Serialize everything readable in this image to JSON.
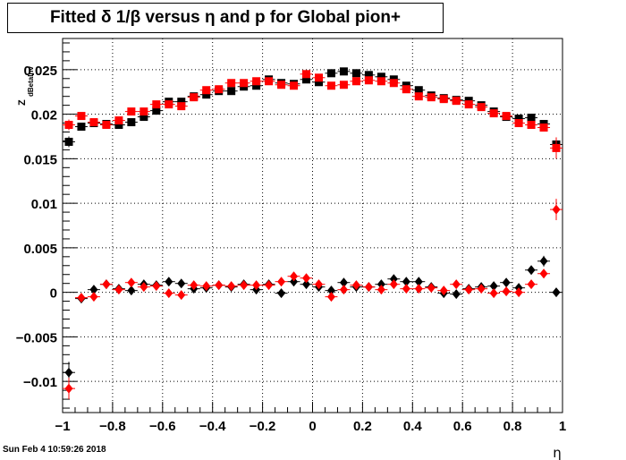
{
  "chart_data": {
    "type": "scatter",
    "title": "Fitted δ 1/β versus η and p for Global pion+",
    "xlabel": "η",
    "ylabel": "Z",
    "ylabel_sub": "dBetaInv",
    "xlim": [
      -1,
      1
    ],
    "ylim": [
      -0.0135,
      0.0285
    ],
    "grid": true,
    "x_ticks": [
      -1,
      -0.8,
      -0.6,
      -0.4,
      -0.2,
      0,
      0.2,
      0.4,
      0.6,
      0.8,
      1
    ],
    "x_tick_labels": [
      "−1",
      "−0.8",
      "−0.6",
      "−0.4",
      "−0.2",
      "0",
      "0.2",
      "0.4",
      "0.6",
      "0.8",
      "1"
    ],
    "y_ticks": [
      -0.01,
      -0.005,
      0,
      0.005,
      0.01,
      0.015,
      0.02,
      0.025
    ],
    "y_tick_labels": [
      "−0.01",
      "−0.005",
      "0",
      "0.005",
      "0.01",
      "0.015",
      "0.02",
      "0.025"
    ],
    "series": [
      {
        "marker": "square",
        "color": "#000000",
        "x": [
          -0.975,
          -0.925,
          -0.875,
          -0.825,
          -0.775,
          -0.725,
          -0.675,
          -0.625,
          -0.575,
          -0.525,
          -0.475,
          -0.425,
          -0.375,
          -0.325,
          -0.275,
          -0.225,
          -0.175,
          -0.125,
          -0.075,
          -0.025,
          0.025,
          0.075,
          0.125,
          0.175,
          0.225,
          0.275,
          0.325,
          0.375,
          0.425,
          0.475,
          0.525,
          0.575,
          0.625,
          0.675,
          0.725,
          0.775,
          0.825,
          0.875,
          0.925,
          0.975
        ],
        "y": [
          0.0169,
          0.0186,
          0.019,
          0.0189,
          0.0188,
          0.0191,
          0.0197,
          0.0204,
          0.0214,
          0.0214,
          0.022,
          0.0222,
          0.0226,
          0.0226,
          0.0231,
          0.0232,
          0.0239,
          0.0235,
          0.0234,
          0.0239,
          0.0236,
          0.0246,
          0.0248,
          0.0246,
          0.0244,
          0.0242,
          0.0239,
          0.0232,
          0.0227,
          0.0221,
          0.0218,
          0.0216,
          0.0215,
          0.021,
          0.0203,
          0.0197,
          0.0195,
          0.0196,
          0.0189,
          0.0166
        ],
        "yerr": [
          0.0006,
          0.0003,
          0.0003,
          0.0003,
          0.0003,
          0.0003,
          0.0003,
          0.0003,
          0.0003,
          0.0003,
          0.0003,
          0.0003,
          0.0003,
          0.0003,
          0.0003,
          0.0003,
          0.0003,
          0.0003,
          0.0003,
          0.0003,
          0.0003,
          0.0003,
          0.0003,
          0.0003,
          0.0003,
          0.0003,
          0.0003,
          0.0003,
          0.0003,
          0.0003,
          0.0003,
          0.0003,
          0.0003,
          0.0003,
          0.0003,
          0.0003,
          0.0003,
          0.0003,
          0.0003,
          0.0006
        ]
      },
      {
        "marker": "square",
        "color": "#ff0000",
        "x": [
          -0.975,
          -0.925,
          -0.875,
          -0.825,
          -0.775,
          -0.725,
          -0.675,
          -0.625,
          -0.575,
          -0.525,
          -0.475,
          -0.425,
          -0.375,
          -0.325,
          -0.275,
          -0.225,
          -0.175,
          -0.125,
          -0.075,
          -0.025,
          0.025,
          0.075,
          0.125,
          0.175,
          0.225,
          0.275,
          0.325,
          0.375,
          0.425,
          0.475,
          0.525,
          0.575,
          0.625,
          0.675,
          0.725,
          0.775,
          0.825,
          0.875,
          0.925,
          0.975
        ],
        "y": [
          0.0188,
          0.0198,
          0.0191,
          0.0188,
          0.0193,
          0.0203,
          0.0203,
          0.0211,
          0.0211,
          0.0209,
          0.0219,
          0.0227,
          0.0228,
          0.0235,
          0.0235,
          0.0237,
          0.0237,
          0.0233,
          0.0232,
          0.0245,
          0.0241,
          0.0232,
          0.0233,
          0.0237,
          0.0238,
          0.0237,
          0.0235,
          0.0228,
          0.022,
          0.0219,
          0.0217,
          0.0215,
          0.0211,
          0.0208,
          0.0201,
          0.0198,
          0.019,
          0.0188,
          0.0185,
          0.0162
        ],
        "yerr": [
          0.0006,
          0.0003,
          0.0003,
          0.0003,
          0.0003,
          0.0003,
          0.0003,
          0.0003,
          0.0003,
          0.0003,
          0.0003,
          0.0003,
          0.0003,
          0.0003,
          0.0003,
          0.0003,
          0.0003,
          0.0003,
          0.0003,
          0.0003,
          0.0003,
          0.0003,
          0.0003,
          0.0003,
          0.0003,
          0.0003,
          0.0003,
          0.0003,
          0.0003,
          0.0003,
          0.0003,
          0.0003,
          0.0003,
          0.0003,
          0.0003,
          0.0003,
          0.0003,
          0.0003,
          0.0003,
          0.0012
        ]
      },
      {
        "marker": "diamond",
        "color": "#000000",
        "x": [
          -0.975,
          -0.925,
          -0.875,
          -0.825,
          -0.775,
          -0.725,
          -0.675,
          -0.625,
          -0.575,
          -0.525,
          -0.475,
          -0.425,
          -0.375,
          -0.325,
          -0.275,
          -0.225,
          -0.175,
          -0.125,
          -0.075,
          -0.025,
          0.025,
          0.075,
          0.125,
          0.175,
          0.225,
          0.275,
          0.325,
          0.375,
          0.425,
          0.475,
          0.525,
          0.575,
          0.625,
          0.675,
          0.725,
          0.775,
          0.825,
          0.875,
          0.925,
          0.975
        ],
        "y": [
          -0.009,
          -0.0007,
          0.0003,
          0.0009,
          0.0004,
          0.0002,
          0.0009,
          0.0008,
          0.0012,
          0.001,
          0.0004,
          0.0005,
          0.0008,
          0.0006,
          0.0009,
          0.0003,
          0.0009,
          -0.0001,
          0.0012,
          0.0009,
          0.0006,
          0.0002,
          0.0011,
          0.0006,
          0.0006,
          0.0009,
          0.0015,
          0.0012,
          0.0012,
          0.0006,
          -0.0001,
          -0.0002,
          0.0004,
          0.0006,
          0.0007,
          0.0011,
          0.0005,
          0.0025,
          0.0035,
          0.0
        ],
        "yerr": [
          0.0012,
          0.0003,
          0.0003,
          0.0003,
          0.0003,
          0.0003,
          0.0003,
          0.0003,
          0.0003,
          0.0003,
          0.0003,
          0.0003,
          0.0003,
          0.0003,
          0.0003,
          0.0003,
          0.0003,
          0.0003,
          0.0003,
          0.0003,
          0.0003,
          0.0003,
          0.0003,
          0.0003,
          0.0003,
          0.0003,
          0.0003,
          0.0003,
          0.0003,
          0.0003,
          0.0003,
          0.0003,
          0.0003,
          0.0003,
          0.0003,
          0.0003,
          0.0003,
          0.0003,
          0.0006,
          0.0
        ]
      },
      {
        "marker": "diamond",
        "color": "#ff0000",
        "x": [
          -0.975,
          -0.925,
          -0.875,
          -0.825,
          -0.775,
          -0.725,
          -0.675,
          -0.625,
          -0.575,
          -0.525,
          -0.475,
          -0.425,
          -0.375,
          -0.325,
          -0.275,
          -0.225,
          -0.175,
          -0.125,
          -0.075,
          -0.025,
          0.025,
          0.075,
          0.125,
          0.175,
          0.225,
          0.275,
          0.325,
          0.375,
          0.425,
          0.475,
          0.525,
          0.575,
          0.625,
          0.675,
          0.725,
          0.775,
          0.825,
          0.875,
          0.925,
          0.975
        ],
        "y": [
          -0.0108,
          -0.0006,
          -0.0005,
          0.0009,
          0.0003,
          0.0011,
          0.0006,
          0.0007,
          -0.0001,
          -0.0003,
          0.0008,
          0.0007,
          0.0008,
          0.0007,
          0.0008,
          0.0008,
          0.0008,
          0.0012,
          0.0018,
          0.0016,
          0.0009,
          -0.0005,
          0.0003,
          0.0008,
          0.0006,
          0.0003,
          0.0009,
          0.0004,
          0.0004,
          0.0005,
          0.0002,
          0.0009,
          0.0003,
          0.0004,
          -0.0001,
          0.0001,
          0.0,
          0.0009,
          0.0021,
          0.0093
        ],
        "yerr": [
          0.0012,
          0.0003,
          0.0003,
          0.0003,
          0.0003,
          0.0003,
          0.0003,
          0.0003,
          0.0003,
          0.0003,
          0.0003,
          0.0003,
          0.0003,
          0.0003,
          0.0003,
          0.0003,
          0.0003,
          0.0003,
          0.0003,
          0.0003,
          0.0003,
          0.0003,
          0.0003,
          0.0003,
          0.0003,
          0.0003,
          0.0003,
          0.0003,
          0.0003,
          0.0003,
          0.0003,
          0.0003,
          0.0003,
          0.0003,
          0.0003,
          0.0003,
          0.0003,
          0.0003,
          0.0005,
          0.0012
        ]
      }
    ]
  },
  "footer": {
    "date": "Sun Feb  4 10:59:26 2018"
  }
}
